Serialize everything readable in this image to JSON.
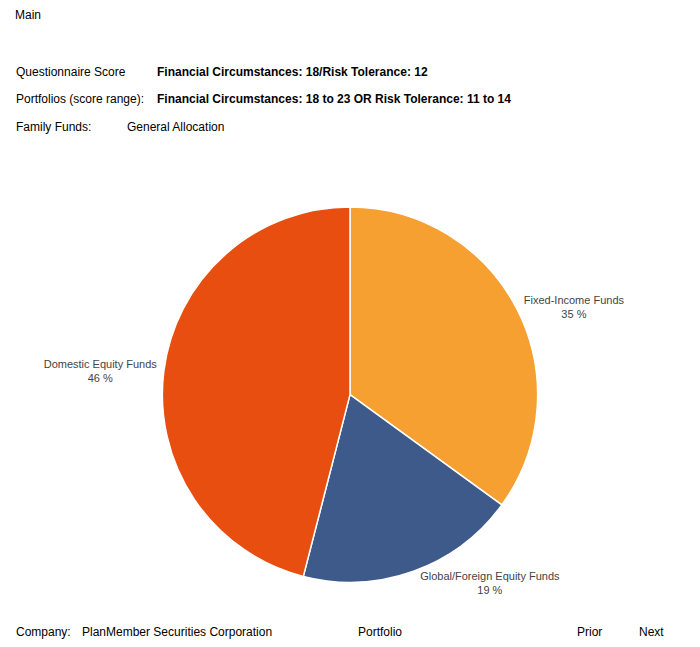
{
  "chart_data": {
    "type": "pie",
    "categories": [
      "Fixed-Income Funds",
      "Global/Foreign Equity Funds",
      "Domestic Equity Funds"
    ],
    "values": [
      35,
      19,
      46
    ],
    "value_labels": [
      "35 %",
      "19 %",
      "46 %"
    ],
    "colors": [
      "#F5A030",
      "#3D5A8A",
      "#E84E0F"
    ],
    "data_labels": true,
    "annotations": [
      "Main",
      "Questionnaire Score",
      "Financial Circumstances: 18/Risk Tolerance: 12",
      "Portfolios (score range):",
      "Financial Circumstances: 18 to 23 OR Risk Tolerance: 11 to 14",
      "Family Funds:",
      "General Allocation",
      "Company:",
      "PlanMember Securities Corporation",
      "Portfolio",
      "Prior",
      "Next"
    ]
  }
}
